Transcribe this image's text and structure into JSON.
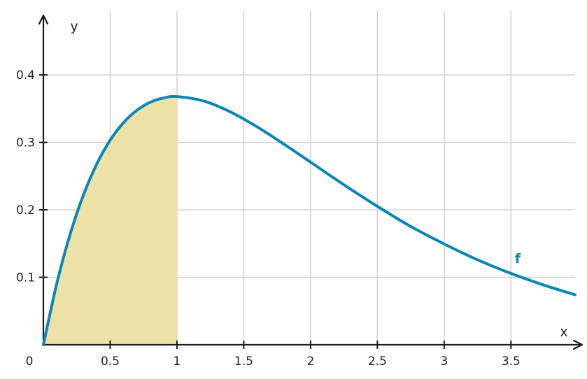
{
  "chart_data": {
    "type": "line",
    "title": "",
    "xlabel": "x",
    "ylabel": "y",
    "origin_label": "0",
    "xlim": [
      0,
      3.98
    ],
    "ylim": [
      0,
      0.48
    ],
    "x_ticks": [
      0.5,
      1,
      1.5,
      2,
      2.5,
      3,
      3.5
    ],
    "x_tick_labels": [
      "0.5",
      "1",
      "1.5",
      "2",
      "2.5",
      "3",
      "3.5"
    ],
    "y_ticks": [
      0.1,
      0.2,
      0.3,
      0.4
    ],
    "y_tick_labels": [
      "0.1",
      "0.2",
      "0.3",
      "0.4"
    ],
    "grid": true,
    "series": [
      {
        "name": "f",
        "color": "#0a86b4",
        "x": [
          0,
          0.1,
          0.2,
          0.3,
          0.4,
          0.5,
          0.6,
          0.7,
          0.8,
          0.9,
          1.0,
          1.2,
          1.4,
          1.6,
          1.8,
          2.0,
          2.25,
          2.5,
          2.75,
          3.0,
          3.25,
          3.5,
          3.75,
          3.98
        ],
        "y": [
          0,
          0.0905,
          0.1637,
          0.2222,
          0.2681,
          0.3033,
          0.3293,
          0.3476,
          0.3595,
          0.3659,
          0.3679,
          0.3614,
          0.3452,
          0.323,
          0.2975,
          0.2707,
          0.2371,
          0.2052,
          0.1753,
          0.1494,
          0.1259,
          0.1057,
          0.0882,
          0.0741
        ]
      }
    ],
    "shaded_region": {
      "x_from": 0,
      "x_to": 1,
      "color": "#ede1a6"
    }
  }
}
